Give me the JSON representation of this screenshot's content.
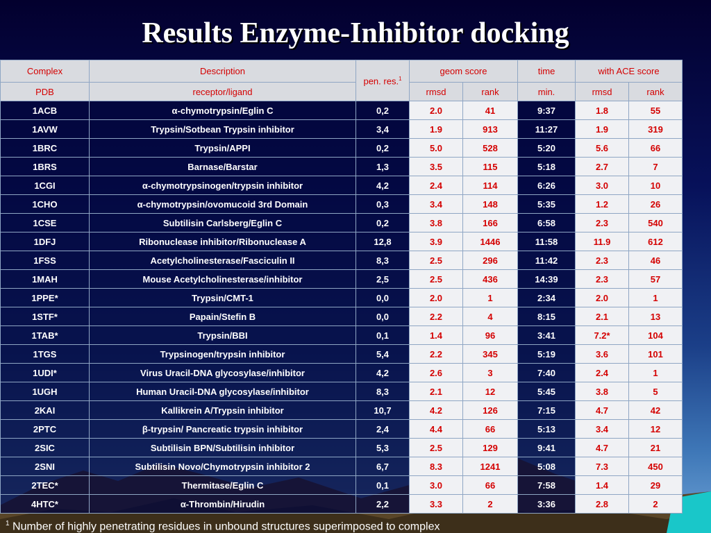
{
  "title": "Results Enzyme-Inhibitor docking",
  "header": {
    "complex": "Complex",
    "description": "Description",
    "pen_res": "pen. res.",
    "pen_res_sup": "1",
    "geom_score": "geom score",
    "time": "time",
    "ace_score": "with ACE score",
    "pdb": "PDB",
    "receptor_ligand": "receptor/ligand",
    "rmsd": "rmsd",
    "rank": "rank",
    "min": "min.",
    "ace_rmsd": "rmsd",
    "ace_rank": "rank"
  },
  "rows": [
    {
      "pdb": "1ACB",
      "desc": "α-chymotrypsin/Eglin C",
      "pen": "0,2",
      "rmsd": "2.0",
      "rank": "41",
      "time": "9:37",
      "ace_rmsd": "1.8",
      "ace_rank": "55"
    },
    {
      "pdb": "1AVW",
      "desc": "Trypsin/Sotbean Trypsin inhibitor",
      "pen": "3,4",
      "rmsd": "1.9",
      "rank": "913",
      "time": "11:27",
      "ace_rmsd": "1.9",
      "ace_rank": "319"
    },
    {
      "pdb": "1BRC",
      "desc": "Trypsin/APPI",
      "pen": "0,2",
      "rmsd": "5.0",
      "rank": "528",
      "time": "5:20",
      "ace_rmsd": "5.6",
      "ace_rank": "66"
    },
    {
      "pdb": "1BRS",
      "desc": "Barnase/Barstar",
      "pen": "1,3",
      "rmsd": "3.5",
      "rank": "115",
      "time": "5:18",
      "ace_rmsd": "2.7",
      "ace_rank": "7"
    },
    {
      "pdb": "1CGI",
      "desc": "α-chymotrypsinogen/trypsin inhibitor",
      "pen": "4,2",
      "rmsd": "2.4",
      "rank": "114",
      "time": "6:26",
      "ace_rmsd": "3.0",
      "ace_rank": "10"
    },
    {
      "pdb": "1CHO",
      "desc": "α-chymotrypsin/ovomucoid 3rd Domain",
      "pen": "0,3",
      "rmsd": "3.4",
      "rank": "148",
      "time": "5:35",
      "ace_rmsd": "1.2",
      "ace_rank": "26"
    },
    {
      "pdb": "1CSE",
      "desc": "Subtilisin Carlsberg/Eglin C",
      "pen": "0,2",
      "rmsd": "3.8",
      "rank": "166",
      "time": "6:58",
      "ace_rmsd": "2.3",
      "ace_rank": "540"
    },
    {
      "pdb": "1DFJ",
      "desc": "Ribonuclease inhibitor/Ribonuclease A",
      "pen": "12,8",
      "rmsd": "3.9",
      "rank": "1446",
      "time": "11:58",
      "ace_rmsd": "11.9",
      "ace_rank": "612"
    },
    {
      "pdb": "1FSS",
      "desc": "Acetylcholinesterase/Fasciculin II",
      "pen": "8,3",
      "rmsd": "2.5",
      "rank": "296",
      "time": "11:42",
      "ace_rmsd": "2.3",
      "ace_rank": "46"
    },
    {
      "pdb": "1MAH",
      "desc": "Mouse Acetylcholinesterase/inhibitor",
      "pen": "2,5",
      "rmsd": "2.5",
      "rank": "436",
      "time": "14:39",
      "ace_rmsd": "2.3",
      "ace_rank": "57"
    },
    {
      "pdb": "1PPE*",
      "desc": "Trypsin/CMT-1",
      "pen": "0,0",
      "rmsd": "2.0",
      "rank": "1",
      "time": "2:34",
      "ace_rmsd": "2.0",
      "ace_rank": "1"
    },
    {
      "pdb": "1STF*",
      "desc": "Papain/Stefin B",
      "pen": "0,0",
      "rmsd": "2.2",
      "rank": "4",
      "time": "8:15",
      "ace_rmsd": "2.1",
      "ace_rank": "13"
    },
    {
      "pdb": "1TAB*",
      "desc": "Trypsin/BBI",
      "pen": "0,1",
      "rmsd": "1.4",
      "rank": "96",
      "time": "3:41",
      "ace_rmsd": "7.2*",
      "ace_rank": "104"
    },
    {
      "pdb": "1TGS",
      "desc": "Trypsinogen/trypsin inhibitor",
      "pen": "5,4",
      "rmsd": "2.2",
      "rank": "345",
      "time": "5:19",
      "ace_rmsd": "3.6",
      "ace_rank": "101"
    },
    {
      "pdb": "1UDI*",
      "desc": "Virus Uracil-DNA glycosylase/inhibitor",
      "pen": "4,2",
      "rmsd": "2.6",
      "rank": "3",
      "time": "7:40",
      "ace_rmsd": "2.4",
      "ace_rank": "1"
    },
    {
      "pdb": "1UGH",
      "desc": "Human Uracil-DNA glycosylase/inhibitor",
      "pen": "8,3",
      "rmsd": "2.1",
      "rank": "12",
      "time": "5:45",
      "ace_rmsd": "3.8",
      "ace_rank": "5"
    },
    {
      "pdb": "2KAI",
      "desc": "Kallikrein A/Trypsin inhibitor",
      "pen": "10,7",
      "rmsd": "4.2",
      "rank": "126",
      "time": "7:15",
      "ace_rmsd": "4.7",
      "ace_rank": "42"
    },
    {
      "pdb": "2PTC",
      "desc": "β-trypsin/ Pancreatic trypsin inhibitor",
      "pen": "2,4",
      "rmsd": "4.4",
      "rank": "66",
      "time": "5:13",
      "ace_rmsd": "3.4",
      "ace_rank": "12"
    },
    {
      "pdb": "2SIC",
      "desc": "Subtilisin BPN/Subtilisin inhibitor",
      "pen": "5,3",
      "rmsd": "2.5",
      "rank": "129",
      "time": "9:41",
      "ace_rmsd": "4.7",
      "ace_rank": "21"
    },
    {
      "pdb": "2SNI",
      "desc": "Subtilisin Novo/Chymotrypsin inhibitor 2",
      "pen": "6,7",
      "rmsd": "8.3",
      "rank": "1241",
      "time": "5:08",
      "ace_rmsd": "7.3",
      "ace_rank": "450"
    },
    {
      "pdb": "2TEC*",
      "desc": "Thermitase/Eglin C",
      "pen": "0,1",
      "rmsd": "3.0",
      "rank": "66",
      "time": "7:58",
      "ace_rmsd": "1.4",
      "ace_rank": "29"
    },
    {
      "pdb": "4HTC*",
      "desc": "α-Thrombin/Hirudin",
      "pen": "2,2",
      "rmsd": "3.3",
      "rank": "2",
      "time": "3:36",
      "ace_rmsd": "2.8",
      "ace_rank": "2"
    }
  ],
  "footnote": {
    "marker": "1",
    "text": " Number of highly penetrating residues in unbound structures superimposed to complex"
  },
  "colors": {
    "header_bg": "#d9dbe0",
    "header_text": "#d40000",
    "dark_cell_bg": "#02063c",
    "light_cell_bg": "#f0f1f4",
    "light_cell_text": "#d40000",
    "dark_cell_text": "#ffffff"
  }
}
